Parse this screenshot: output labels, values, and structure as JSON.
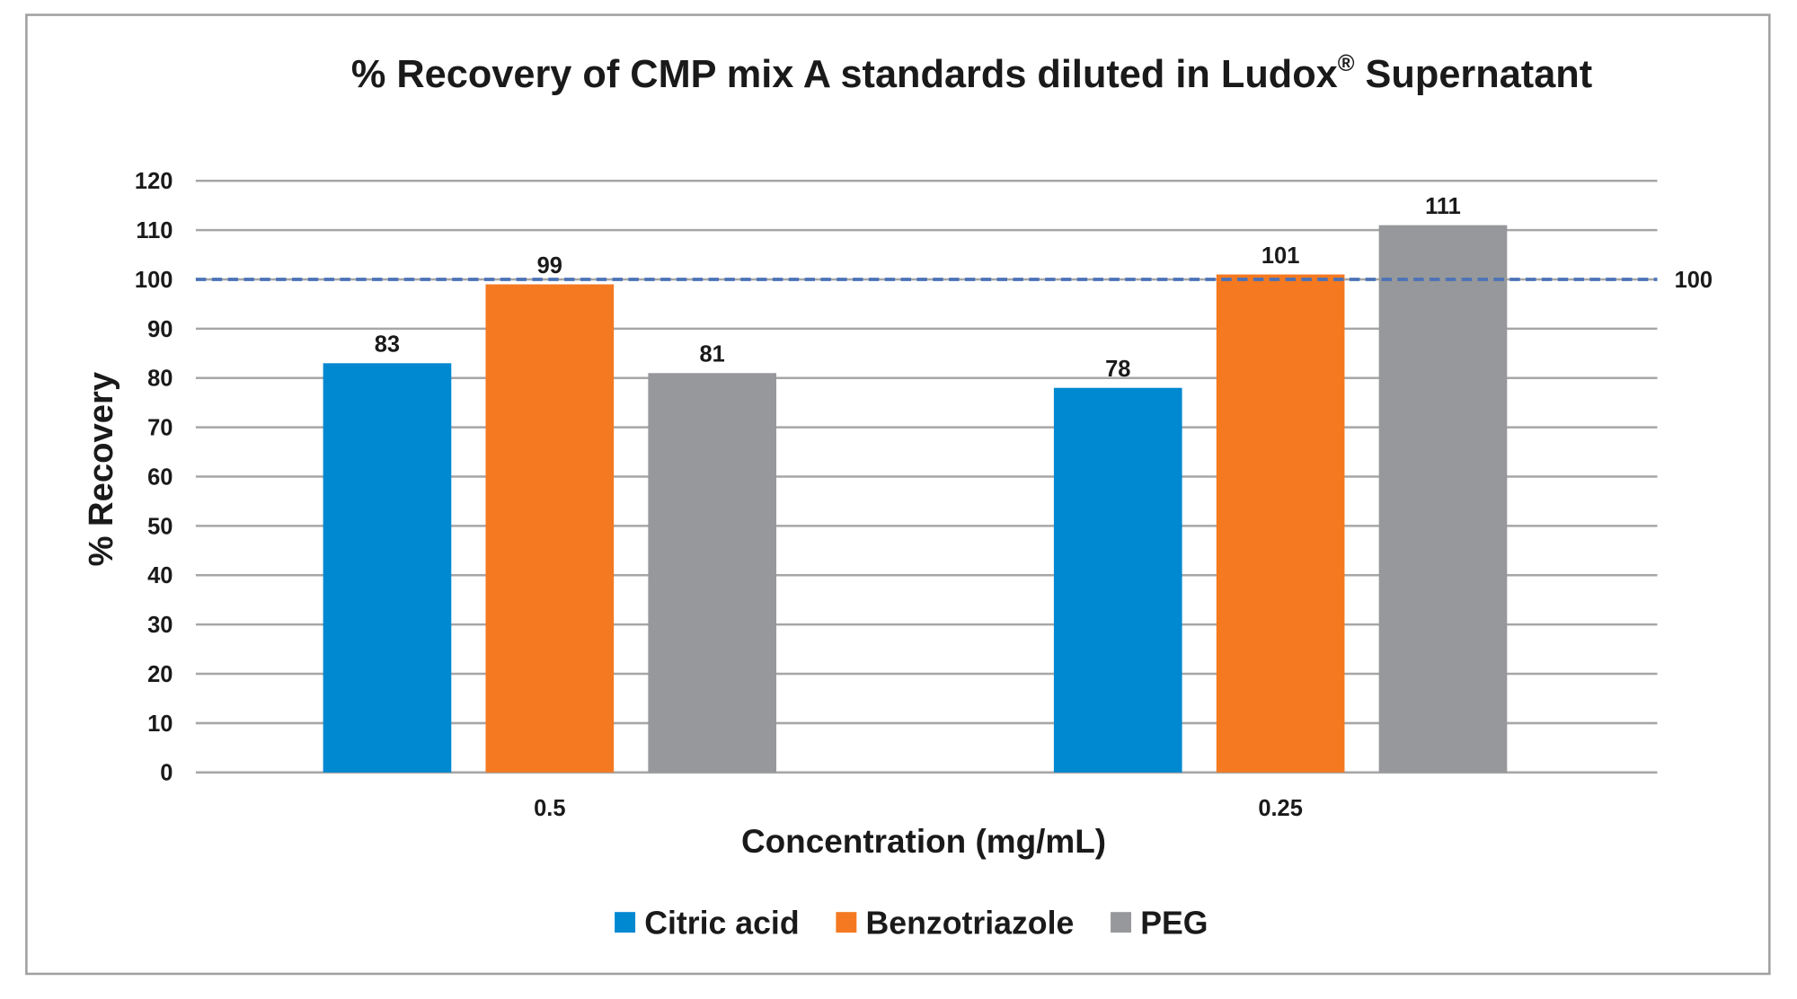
{
  "chart_data": {
    "type": "bar",
    "title": "% Recovery of CMP mix A standards diluted in Ludox",
    "title_superscript": "®",
    "title_suffix": " Supernatant",
    "xlabel": "Concentration (mg/mL)",
    "ylabel": "% Recovery",
    "categories": [
      "0.5",
      "0.25"
    ],
    "ylim": [
      0,
      120
    ],
    "yticks": [
      0,
      10,
      20,
      30,
      40,
      50,
      60,
      70,
      80,
      90,
      100,
      110,
      120
    ],
    "grid": true,
    "legend_position": "bottom",
    "series": [
      {
        "name": "Citric acid",
        "values": [
          83,
          78
        ],
        "color": "#0088d1"
      },
      {
        "name": "Benzotriazole",
        "values": [
          99,
          101
        ],
        "color": "#f47920"
      },
      {
        "name": "PEG",
        "values": [
          81,
          111
        ],
        "color": "#97989b"
      }
    ],
    "reference_line": {
      "value": 100,
      "label": "100",
      "style": "dashed",
      "color": "#4a72b8"
    }
  }
}
